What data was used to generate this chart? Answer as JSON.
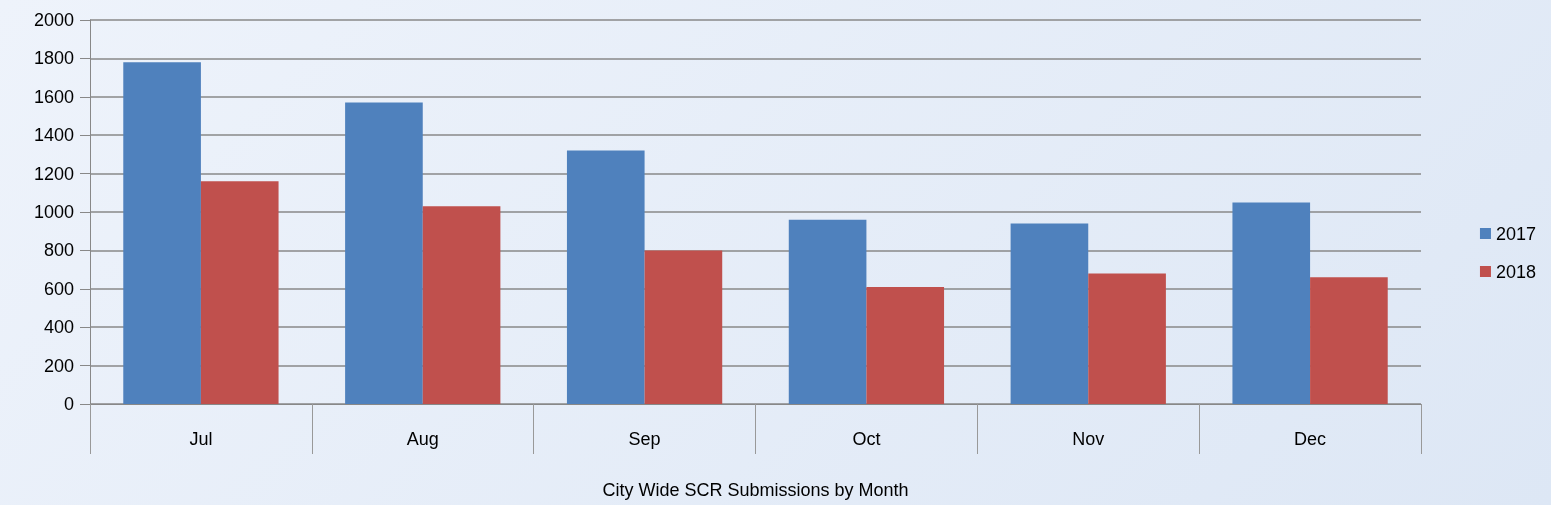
{
  "chart_data": {
    "type": "bar",
    "xlabel": "City Wide SCR Submissions by Month",
    "categories": [
      "Jul",
      "Aug",
      "Sep",
      "Oct",
      "Nov",
      "Dec"
    ],
    "series": [
      {
        "name": "2017",
        "color": "#4f81bd",
        "values": [
          1780,
          1570,
          1320,
          960,
          940,
          1050
        ]
      },
      {
        "name": "2018",
        "color": "#c0504d",
        "values": [
          1160,
          1030,
          800,
          610,
          680,
          660
        ]
      }
    ],
    "ylim": [
      0,
      2000
    ],
    "yticks": [
      0,
      200,
      400,
      600,
      800,
      1000,
      1200,
      1400,
      1600,
      1800,
      2000
    ],
    "grid": "y",
    "legend": "right"
  }
}
